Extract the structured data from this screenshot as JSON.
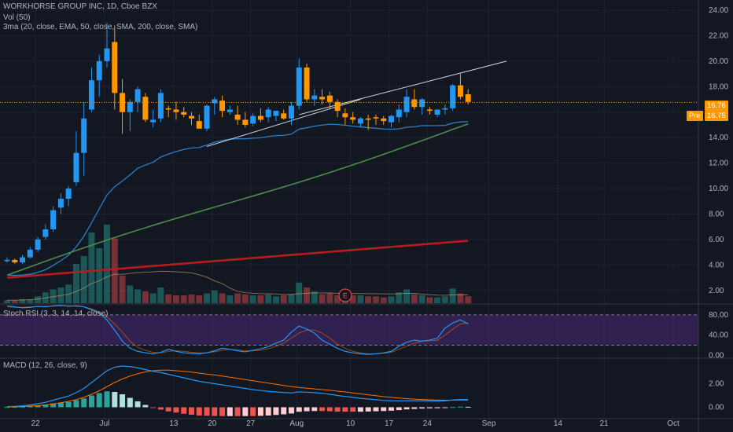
{
  "header": {
    "symbol_line": "WORKHORSE GROUP INC, 1D, Cboe BZX",
    "vol_label": "Vol (50)",
    "ma_label": "3ma (20, close, EMA, 50, close, SMA, 200, close, SMA)"
  },
  "price_tag": "16.76",
  "pre_label": "Pre",
  "pre_price": "16.75",
  "earnings_marker": "E",
  "stoch_label": "Stoch RSI (3, 3, 14, 14, close)",
  "macd_label": "MACD (12, 26, close, 9)",
  "colors": {
    "background": "#131722",
    "up": "#2196f3",
    "down": "#ff9800",
    "ema20": "#2a7fc9",
    "sma50": "#4c8c4a",
    "sma200": "#b71c1c",
    "stoch_band": "#4a2a78",
    "macd_line": "#2196f3",
    "signal_line": "#ff6d00"
  },
  "chart_data": [
    {
      "type": "candlestick",
      "price_axis": {
        "ticks": [
          "24.00",
          "22.00",
          "20.00",
          "18.00",
          "16.00",
          "14.00",
          "12.00",
          "10.00",
          "8.00",
          "6.00",
          "4.00",
          "2.00"
        ],
        "ylim": [
          1,
          24.8
        ]
      },
      "time_axis": {
        "labels": [
          "22",
          "Jul",
          "13",
          "20",
          "27",
          "Aug",
          "10",
          "17",
          "24",
          "Sep",
          "14",
          "21",
          "Oct"
        ]
      },
      "ohlc": [
        [
          4.3,
          4.6,
          4.2,
          4.4
        ],
        [
          4.4,
          4.5,
          4.1,
          4.2
        ],
        [
          4.2,
          4.8,
          4.1,
          4.6
        ],
        [
          4.6,
          5.4,
          4.5,
          5.2
        ],
        [
          5.2,
          6.2,
          5.0,
          6.0
        ],
        [
          6.2,
          7.2,
          6.0,
          6.8
        ],
        [
          6.8,
          8.6,
          6.6,
          8.3
        ],
        [
          8.5,
          9.6,
          8.0,
          9.2
        ],
        [
          9.2,
          10.2,
          8.6,
          10.0
        ],
        [
          10.5,
          14.5,
          10.2,
          12.8
        ],
        [
          12.8,
          16.8,
          11.0,
          15.5
        ],
        [
          16.2,
          19.5,
          16.0,
          18.5
        ],
        [
          18.5,
          20.5,
          17.2,
          20.0
        ],
        [
          20.0,
          23.0,
          19.5,
          21.0
        ],
        [
          21.5,
          22.8,
          16.2,
          17.5
        ],
        [
          17.5,
          18.6,
          14.3,
          16.0
        ],
        [
          16.0,
          17.0,
          14.5,
          16.8
        ],
        [
          16.8,
          18.0,
          16.0,
          17.8
        ],
        [
          17.2,
          17.5,
          15.2,
          15.4
        ],
        [
          15.2,
          16.2,
          14.8,
          15.4
        ],
        [
          15.5,
          17.8,
          15.2,
          17.5
        ],
        [
          16.3,
          16.5,
          15.6,
          16.2
        ],
        [
          16.2,
          16.8,
          15.4,
          16.0
        ],
        [
          16.0,
          16.4,
          15.6,
          15.8
        ],
        [
          15.7,
          16.0,
          15.0,
          15.5
        ],
        [
          15.3,
          15.8,
          14.8,
          14.7
        ],
        [
          14.7,
          16.6,
          14.5,
          16.5
        ],
        [
          16.7,
          17.2,
          15.8,
          17.0
        ],
        [
          16.9,
          17.3,
          15.6,
          16.1
        ],
        [
          16.0,
          16.5,
          15.8,
          16.2
        ],
        [
          15.8,
          16.5,
          15.0,
          15.4
        ],
        [
          15.4,
          16.0,
          14.8,
          15.0
        ],
        [
          15.1,
          15.9,
          14.9,
          15.7
        ],
        [
          15.7,
          16.3,
          15.2,
          15.4
        ],
        [
          15.6,
          16.4,
          15.2,
          16.2
        ],
        [
          15.7,
          16.1,
          15.3,
          16.1
        ],
        [
          15.9,
          16.2,
          15.4,
          15.5
        ],
        [
          15.5,
          16.8,
          15.0,
          16.5
        ],
        [
          16.5,
          20.2,
          16.2,
          19.5
        ],
        [
          19.5,
          19.8,
          16.8,
          17.0
        ],
        [
          17.0,
          17.8,
          16.5,
          17.3
        ],
        [
          17.2,
          17.8,
          16.6,
          17.0
        ],
        [
          17.3,
          17.6,
          16.2,
          16.8
        ],
        [
          16.8,
          17.0,
          15.6,
          16.1
        ],
        [
          15.9,
          16.3,
          15.0,
          15.6
        ],
        [
          15.6,
          16.0,
          15.1,
          15.4
        ],
        [
          15.1,
          15.6,
          14.8,
          15.5
        ],
        [
          15.5,
          15.8,
          14.6,
          15.4
        ],
        [
          15.6,
          15.8,
          15.0,
          15.5
        ],
        [
          15.5,
          15.7,
          15.0,
          15.3
        ],
        [
          15.2,
          15.8,
          14.8,
          15.7
        ],
        [
          15.6,
          16.6,
          15.2,
          16.2
        ],
        [
          16.0,
          17.8,
          15.6,
          17.2
        ],
        [
          17.0,
          17.8,
          16.2,
          16.4
        ],
        [
          16.4,
          17.1,
          15.8,
          17.0
        ],
        [
          16.2,
          16.4,
          15.8,
          16.1
        ],
        [
          15.8,
          16.2,
          15.6,
          16.2
        ],
        [
          16.2,
          16.6,
          15.8,
          16.3
        ],
        [
          16.3,
          18.2,
          16.1,
          18.1
        ],
        [
          18.1,
          19.0,
          17.0,
          17.2
        ],
        [
          17.4,
          17.8,
          16.6,
          16.8
        ]
      ],
      "volume": [
        0.3,
        0.3,
        0.4,
        0.4,
        0.7,
        1.1,
        1.4,
        1.6,
        1.9,
        4.0,
        4.8,
        7.2,
        5.6,
        8.0,
        6.6,
        2.8,
        1.8,
        1.4,
        1.2,
        1.0,
        1.6,
        0.9,
        0.8,
        0.8,
        0.9,
        0.8,
        1.0,
        1.3,
        1.0,
        0.8,
        1.0,
        0.9,
        0.8,
        0.8,
        0.9,
        0.7,
        0.8,
        0.9,
        2.1,
        1.6,
        1.2,
        0.9,
        1.0,
        0.8,
        0.7,
        0.8,
        0.8,
        0.7,
        0.7,
        0.6,
        0.7,
        1.1,
        1.4,
        0.9,
        0.8,
        0.6,
        0.6,
        0.7,
        1.5,
        1.0,
        0.7
      ]
    },
    {
      "type": "line",
      "title": "Stoch RSI",
      "axis_ticks": [
        "80.00",
        "40.00",
        "0.00"
      ],
      "ylim": [
        -4,
        100
      ],
      "band": [
        20,
        80
      ],
      "k": [
        98,
        96,
        94,
        95,
        97,
        96,
        98,
        99,
        97,
        98,
        96,
        90,
        84,
        70,
        50,
        28,
        14,
        8,
        5,
        3,
        6,
        12,
        8,
        5,
        4,
        3,
        5,
        9,
        14,
        12,
        9,
        7,
        10,
        13,
        17,
        24,
        30,
        46,
        58,
        52,
        44,
        30,
        22,
        14,
        8,
        5,
        3,
        2,
        3,
        5,
        8,
        18,
        26,
        30,
        28,
        30,
        34,
        54,
        64,
        70,
        62
      ],
      "d": [
        96,
        95,
        95,
        96,
        96,
        97,
        97,
        98,
        98,
        97,
        96,
        92,
        86,
        76,
        62,
        46,
        28,
        16,
        10,
        6,
        5,
        8,
        9,
        8,
        6,
        5,
        5,
        7,
        10,
        12,
        11,
        9,
        9,
        10,
        13,
        18,
        24,
        34,
        44,
        50,
        50,
        44,
        34,
        22,
        14,
        8,
        5,
        3,
        3,
        4,
        6,
        12,
        18,
        24,
        28,
        29,
        30,
        40,
        52,
        62,
        64
      ]
    },
    {
      "type": "line+histogram",
      "title": "MACD",
      "axis_ticks": [
        "2.00",
        "0.00"
      ],
      "ylim": [
        -0.9,
        4.1
      ],
      "macd": [
        0.05,
        0.08,
        0.12,
        0.2,
        0.3,
        0.42,
        0.6,
        0.78,
        0.95,
        1.25,
        1.6,
        2.1,
        2.6,
        3.1,
        3.4,
        3.5,
        3.45,
        3.35,
        3.2,
        3.05,
        2.95,
        2.8,
        2.65,
        2.5,
        2.35,
        2.2,
        2.1,
        2.0,
        1.9,
        1.8,
        1.7,
        1.6,
        1.5,
        1.42,
        1.35,
        1.3,
        1.25,
        1.22,
        1.3,
        1.28,
        1.24,
        1.18,
        1.1,
        1.0,
        0.92,
        0.84,
        0.76,
        0.7,
        0.64,
        0.58,
        0.55,
        0.54,
        0.55,
        0.55,
        0.55,
        0.54,
        0.53,
        0.55,
        0.62,
        0.66,
        0.66
      ],
      "signal": [
        0.03,
        0.05,
        0.07,
        0.1,
        0.14,
        0.2,
        0.28,
        0.38,
        0.5,
        0.65,
        0.85,
        1.1,
        1.4,
        1.75,
        2.1,
        2.4,
        2.65,
        2.85,
        3.0,
        3.1,
        3.15,
        3.15,
        3.1,
        3.05,
        2.98,
        2.9,
        2.82,
        2.74,
        2.65,
        2.55,
        2.45,
        2.35,
        2.25,
        2.15,
        2.05,
        1.95,
        1.85,
        1.75,
        1.68,
        1.62,
        1.56,
        1.5,
        1.44,
        1.37,
        1.3,
        1.22,
        1.14,
        1.06,
        0.98,
        0.9,
        0.84,
        0.78,
        0.73,
        0.69,
        0.66,
        0.63,
        0.61,
        0.6,
        0.6,
        0.61,
        0.62
      ]
    }
  ]
}
